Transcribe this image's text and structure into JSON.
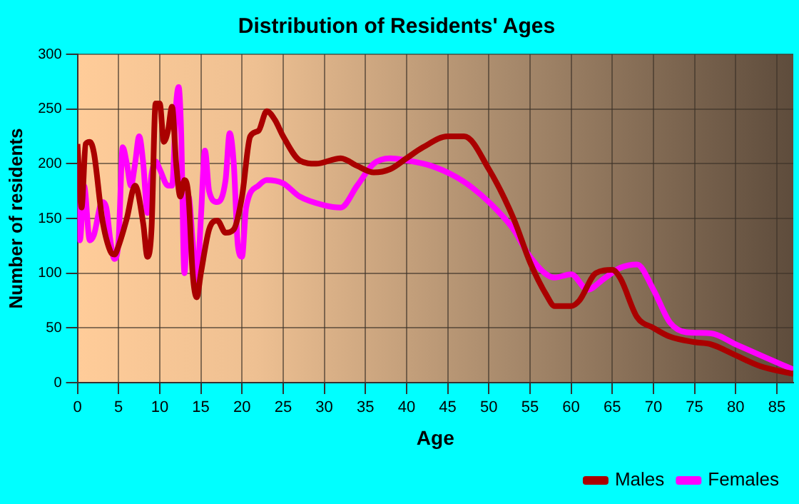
{
  "chart_data": {
    "type": "line",
    "title": "Distribution of Residents' Ages",
    "xlabel": "Age",
    "ylabel": "Number of residents",
    "xlim": [
      0,
      87
    ],
    "xticks": [
      0,
      5,
      10,
      15,
      20,
      25,
      30,
      35,
      40,
      45,
      50,
      55,
      60,
      65,
      70,
      75,
      80,
      85
    ],
    "ylim": [
      0,
      300
    ],
    "yticks": [
      0,
      50,
      100,
      150,
      200,
      250,
      300
    ],
    "grid": true,
    "legend": "bottom right",
    "series": [
      {
        "name": "Males",
        "color": "#aa0000",
        "x": [
          0,
          0.5,
          1,
          1.5,
          2,
          3,
          4,
          4.5,
          5,
          6,
          7,
          8,
          8.5,
          9,
          9.5,
          10,
          10.5,
          11,
          11.5,
          12,
          12.5,
          13,
          13.5,
          14,
          14.5,
          15,
          16,
          17,
          18,
          19,
          20,
          21,
          22,
          23,
          24,
          25,
          27,
          29,
          32,
          34,
          36,
          38,
          40,
          42,
          45,
          47,
          50,
          53,
          55,
          57,
          58,
          60,
          61,
          63,
          65,
          66,
          68,
          70,
          72,
          75,
          77,
          80,
          83,
          87
        ],
        "values": [
          218,
          160,
          218,
          220,
          210,
          150,
          120,
          117,
          125,
          150,
          180,
          145,
          115,
          140,
          255,
          255,
          220,
          230,
          252,
          200,
          170,
          185,
          170,
          100,
          78,
          100,
          140,
          148,
          137,
          140,
          170,
          225,
          230,
          248,
          240,
          225,
          203,
          200,
          205,
          198,
          192,
          195,
          205,
          215,
          225,
          225,
          195,
          150,
          110,
          80,
          70,
          70,
          75,
          100,
          103,
          95,
          60,
          50,
          42,
          37,
          35,
          25,
          15,
          8
        ]
      },
      {
        "name": "Females",
        "color": "#ff00ff",
        "x": [
          0,
          0.3,
          0.8,
          1.5,
          2,
          3,
          3.5,
          4,
          4.5,
          5,
          5.5,
          6,
          6.5,
          7,
          7.5,
          8,
          8.5,
          9,
          9.5,
          10,
          11,
          11.5,
          12,
          12.3,
          12.6,
          13,
          13.5,
          14,
          14.5,
          15,
          15.5,
          16,
          17,
          18,
          18.5,
          19,
          19.5,
          20,
          20.5,
          22,
          23,
          25,
          27,
          30,
          32,
          34,
          36,
          38,
          40,
          43,
          46,
          48,
          50,
          53,
          55,
          58,
          60,
          62,
          64,
          66,
          68,
          70,
          72,
          74,
          77,
          80,
          83,
          87
        ],
        "values": [
          200,
          130,
          180,
          130,
          135,
          165,
          160,
          130,
          113,
          130,
          215,
          200,
          180,
          200,
          225,
          200,
          155,
          190,
          202,
          195,
          180,
          180,
          255,
          270,
          230,
          100,
          170,
          130,
          90,
          150,
          212,
          175,
          165,
          185,
          228,
          200,
          125,
          115,
          160,
          180,
          185,
          182,
          170,
          162,
          160,
          180,
          200,
          205,
          203,
          198,
          188,
          178,
          165,
          140,
          115,
          96,
          99,
          85,
          95,
          105,
          108,
          85,
          55,
          46,
          45,
          35,
          25,
          12
        ]
      }
    ]
  }
}
